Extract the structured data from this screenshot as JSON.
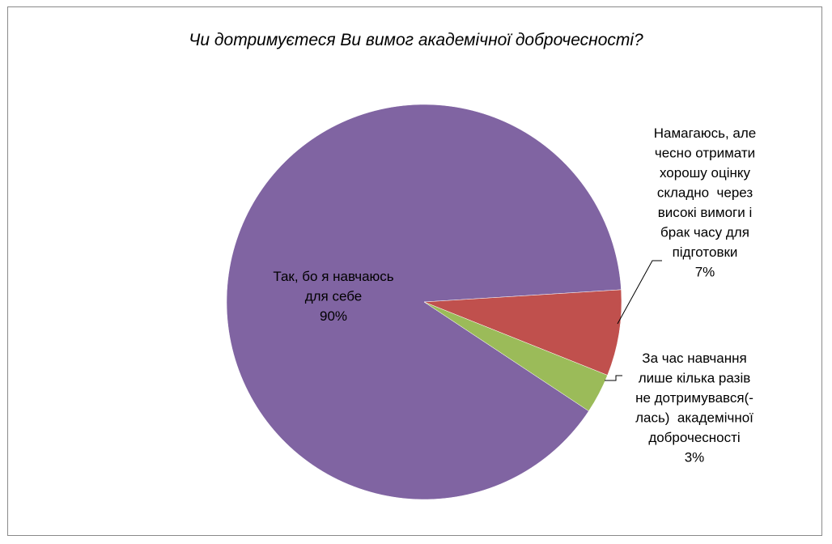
{
  "chart_data": {
    "type": "pie",
    "title": "Чи дотримуєтеся Ви вимог академічної доброчесності?",
    "slices": [
      {
        "name": "Так, бо я навчаюсь для себе",
        "value": 90,
        "label_lines": [
          "Так, бо я навчаюсь",
          "для себе"
        ],
        "pct_label": "90%",
        "color": "#8064a2"
      },
      {
        "name": "Намагаюсь, але чесно отримати хорошу оцінку складно через високі вимоги і брак часу для підготовки",
        "value": 7,
        "label_lines": [
          "Намагаюсь, але",
          "чесно отримати",
          "хорошу оцінку",
          "складно  через",
          "високі вимоги і",
          "брак часу для",
          "підготовки"
        ],
        "pct_label": "7%",
        "color": "#c0504d"
      },
      {
        "name": "За час навчання лише кілька разів не дотримувався(-лась) академічної доброчесності",
        "value": 3,
        "label_lines": [
          "За час навчання",
          "лише кілька разів",
          "не дотримувався(-",
          "лась)  академічної",
          "доброчесності"
        ],
        "pct_label": "3%",
        "color": "#9bbb59"
      }
    ],
    "legend": "none",
    "data_labels": "category name and percentage"
  }
}
